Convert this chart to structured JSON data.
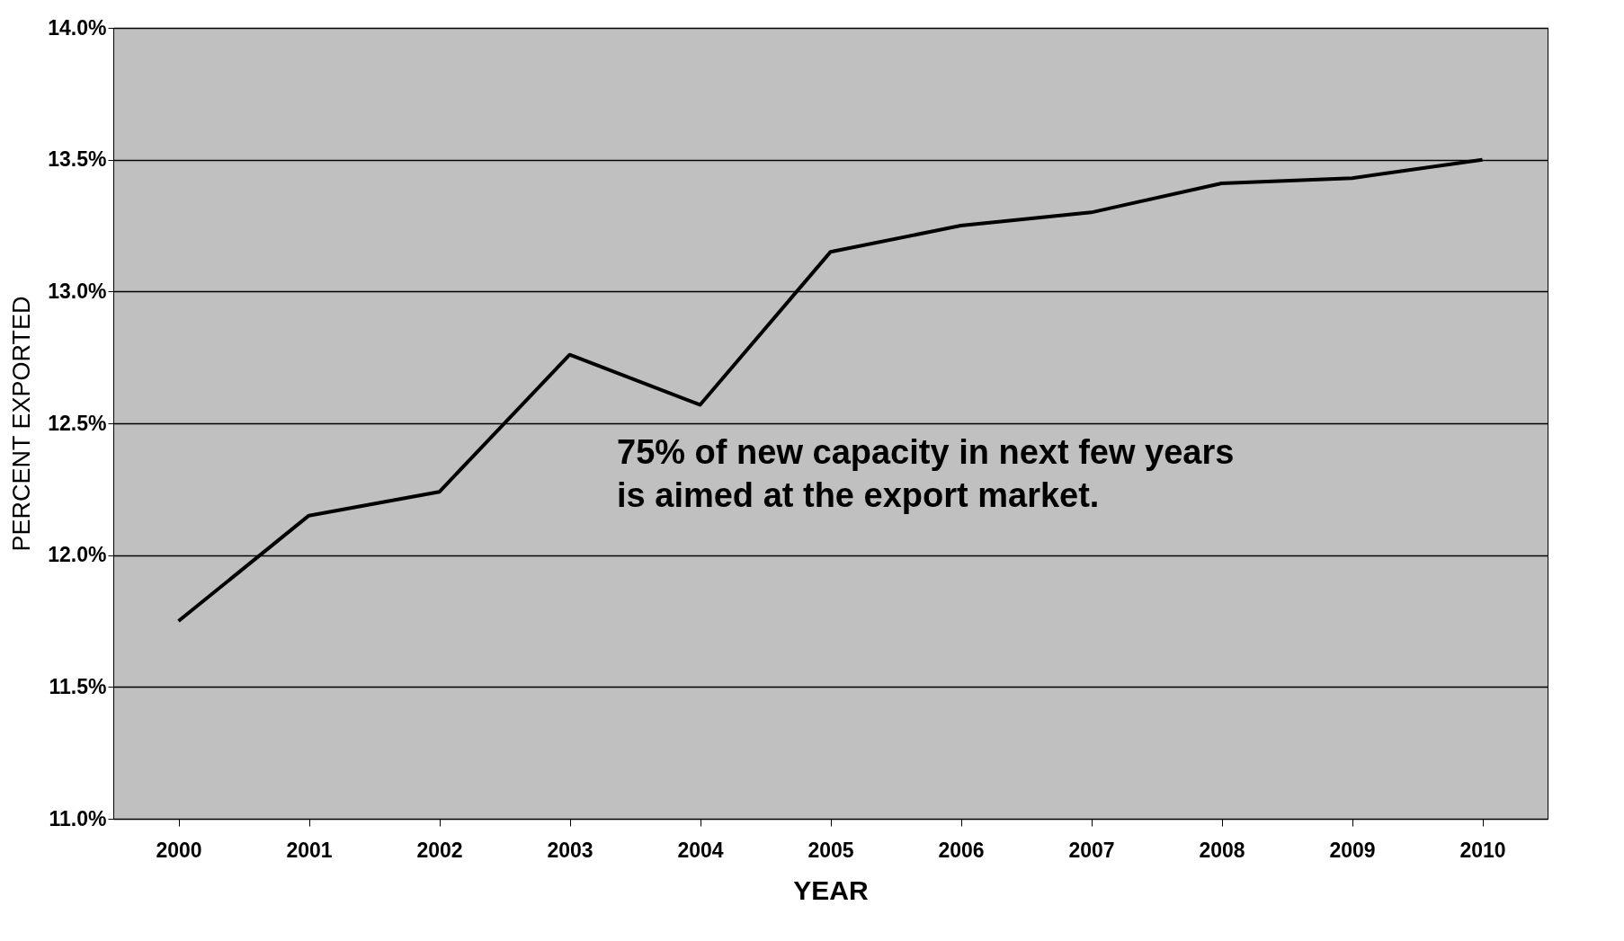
{
  "chart_data": {
    "type": "line",
    "xlabel": "YEAR",
    "ylabel": "PERCENT EXPORTED",
    "categories": [
      "2000",
      "2001",
      "2002",
      "2003",
      "2004",
      "2005",
      "2006",
      "2007",
      "2008",
      "2009",
      "2010"
    ],
    "series": [
      {
        "color": "#000000",
        "values": [
          11.75,
          12.15,
          12.24,
          12.76,
          12.57,
          13.15,
          13.25,
          13.3,
          13.41,
          13.43,
          13.5
        ]
      }
    ],
    "ylim": [
      11.0,
      14.0
    ],
    "yticks": [
      {
        "value": 11.0,
        "label": "11.0%"
      },
      {
        "value": 11.5,
        "label": "11.5%"
      },
      {
        "value": 12.0,
        "label": "12.0%"
      },
      {
        "value": 12.5,
        "label": "12.5%"
      },
      {
        "value": 13.0,
        "label": "13.0%"
      },
      {
        "value": 13.5,
        "label": "13.5%"
      },
      {
        "value": 14.0,
        "label": "14.0%"
      }
    ],
    "grid": "y",
    "legend": false,
    "marker": "none",
    "line_style": "solid",
    "annotations": [
      "75% of new capacity in next few years\nis aimed at the export market."
    ]
  }
}
